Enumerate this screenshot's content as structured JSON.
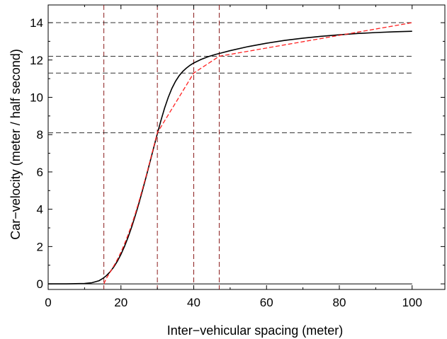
{
  "chart_data": {
    "type": "line",
    "xlabel": "Inter−vehicular spacing (meter)",
    "ylabel": "Car−velocity (meter / half second)",
    "xlim": [
      0,
      109
    ],
    "ylim": [
      -0.3,
      14.95
    ],
    "xticks": [
      0,
      20,
      40,
      60,
      80,
      100
    ],
    "xtick_labels": [
      "0",
      "20",
      "40",
      "60",
      "80",
      "100"
    ],
    "yticks": [
      0,
      2,
      4,
      6,
      8,
      10,
      12,
      14
    ],
    "ytick_labels": [
      "0",
      "2",
      "4",
      "6",
      "8",
      "10",
      "12",
      "14"
    ],
    "x_minor_ticks": [
      10,
      30,
      50,
      70,
      90,
      110
    ],
    "y_minor_ticks": [
      1,
      3,
      5,
      7,
      9,
      11,
      13
    ],
    "grid": false,
    "colors": {
      "smooth": "#000000",
      "piecewise": "#ff2020",
      "vertical_refs": "#8b1c1c",
      "horizontal_refs": "#333333"
    },
    "series": [
      {
        "style": "solid",
        "color": "#000000",
        "x": [
          0,
          5,
          10,
          12,
          14,
          15,
          16,
          17,
          18,
          19,
          20,
          21,
          22,
          23,
          24,
          25,
          26,
          27,
          28,
          29,
          30,
          31,
          32,
          33,
          34,
          35,
          36,
          37,
          38,
          39,
          40,
          42,
          44,
          46,
          48,
          50,
          55,
          60,
          65,
          70,
          75,
          80,
          85,
          90,
          95,
          100
        ],
        "y": [
          0,
          0,
          0.02,
          0.06,
          0.17,
          0.29,
          0.44,
          0.64,
          0.9,
          1.21,
          1.58,
          2.02,
          2.52,
          3.08,
          3.7,
          4.36,
          5.07,
          5.8,
          6.55,
          7.31,
          8.05,
          8.77,
          9.43,
          10.0,
          10.48,
          10.86,
          11.16,
          11.39,
          11.57,
          11.72,
          11.84,
          12.03,
          12.18,
          12.3,
          12.4,
          12.5,
          12.72,
          12.9,
          13.05,
          13.17,
          13.27,
          13.35,
          13.42,
          13.47,
          13.51,
          13.54
        ]
      },
      {
        "style": "dashed",
        "color": "#ff2020",
        "x": [
          15.3,
          16,
          17,
          18,
          19,
          20,
          21,
          22,
          23,
          24,
          25,
          26,
          27,
          28,
          29,
          30,
          40,
          47,
          100
        ],
        "y": [
          0,
          0.3,
          0.62,
          0.95,
          1.3,
          1.7,
          2.15,
          2.65,
          3.2,
          3.8,
          4.45,
          5.15,
          5.85,
          6.6,
          7.35,
          8.1,
          11.3,
          12.2,
          14.0
        ]
      }
    ],
    "reference_lines": {
      "vertical": [
        15.3,
        30,
        40,
        47
      ],
      "horizontal": [
        8.1,
        11.3,
        12.2,
        14.0
      ]
    }
  }
}
